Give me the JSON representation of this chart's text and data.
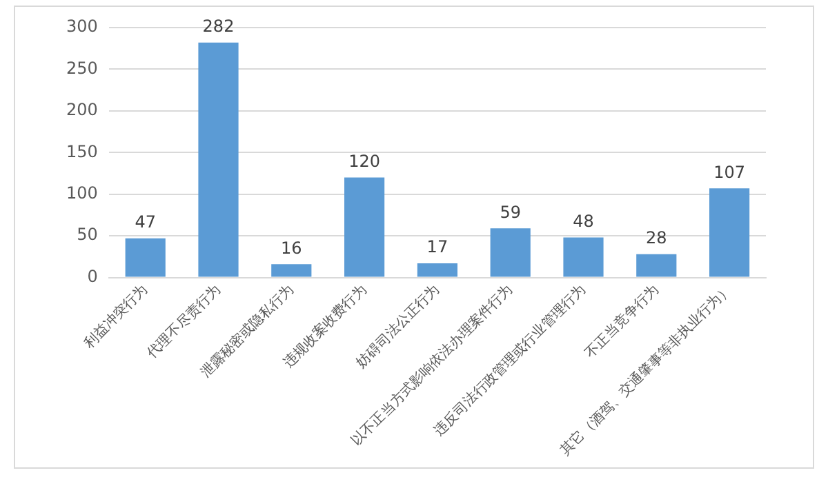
{
  "chart_data": {
    "type": "bar",
    "categories": [
      "利益冲突行为",
      "代理不尽责行为",
      "泄露秘密或隐私行为",
      "违规收案收费行为",
      "妨碍司法公正行为",
      "以不正当方式影响依法办理案件行为",
      "违反司法行政管理或行业管理行为",
      "不正当竞争行为",
      "其它（酒驾、交通肇事等非执业行为）"
    ],
    "values": [
      47,
      282,
      16,
      120,
      17,
      59,
      48,
      28,
      107
    ],
    "color": "#5b9bd5",
    "ylim": [
      0,
      300
    ],
    "yticks": [
      0,
      50,
      100,
      150,
      200,
      250,
      300
    ],
    "grid": "y",
    "data_labels": true,
    "legend": false
  }
}
